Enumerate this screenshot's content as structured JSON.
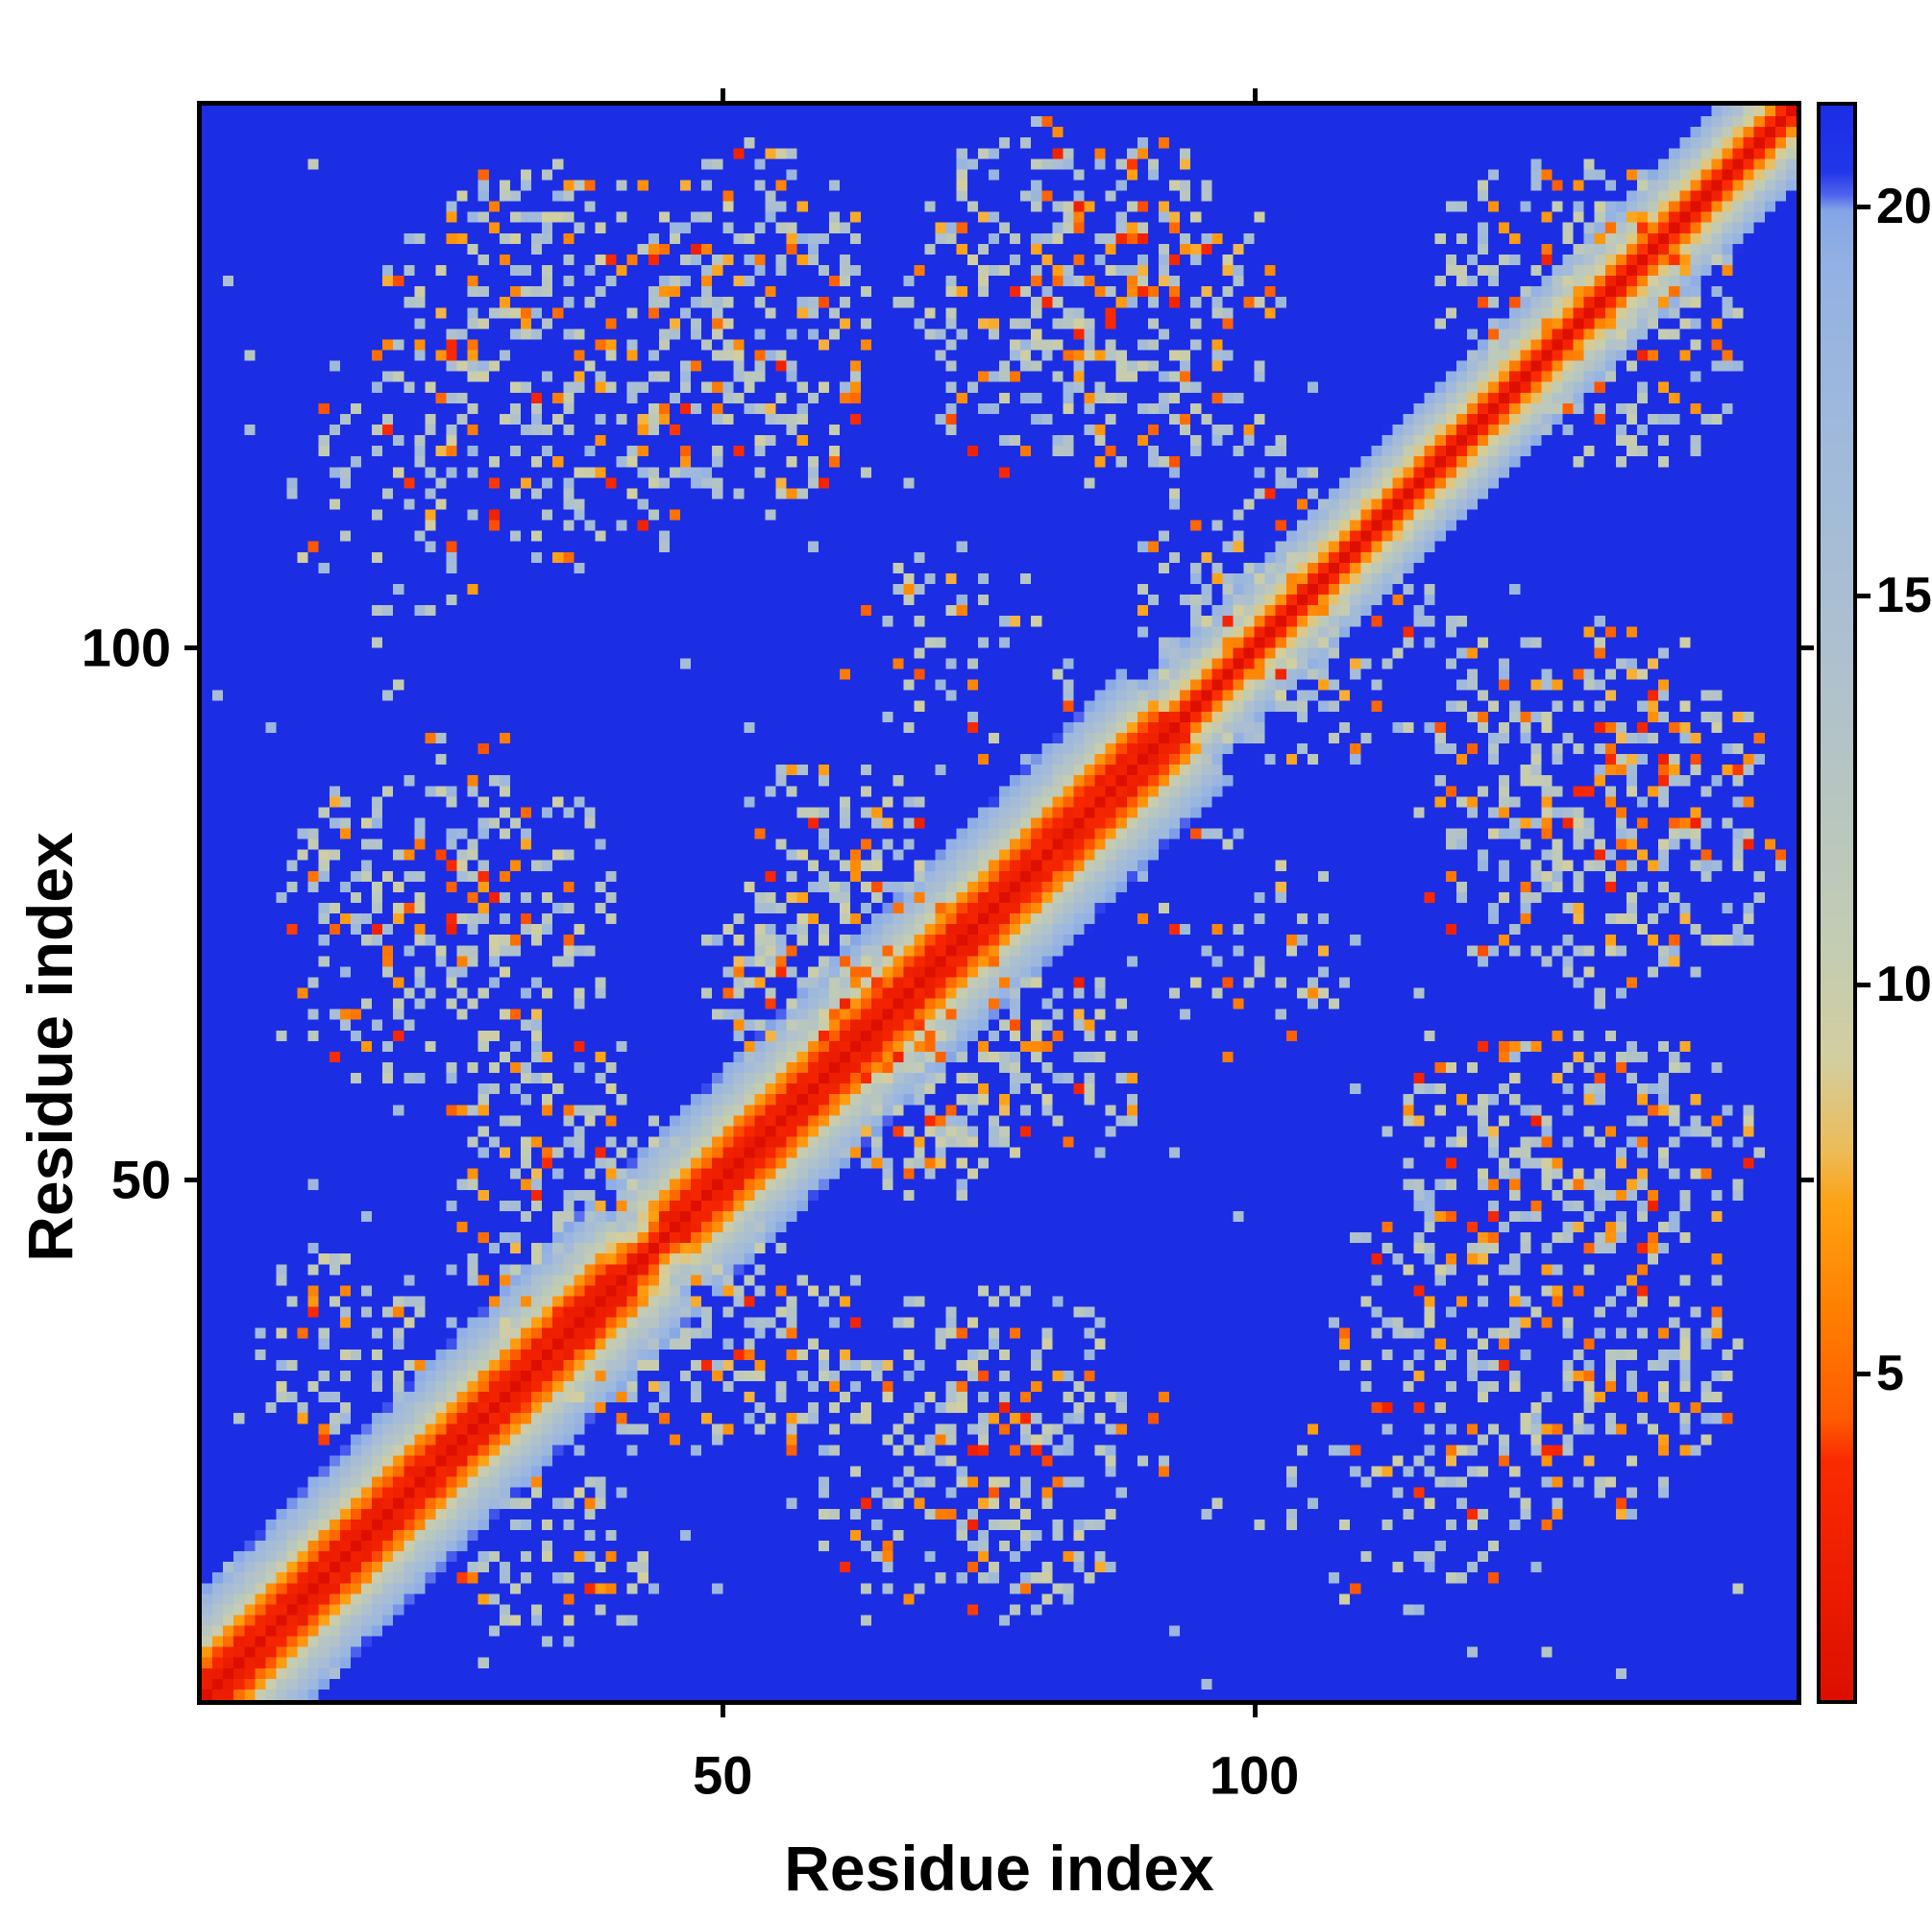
{
  "chart_data": {
    "type": "heatmap",
    "title": "",
    "xlabel": "Residue index",
    "ylabel": "Residue index",
    "x_axis": {
      "range": [
        1,
        151
      ],
      "ticks": [
        50,
        100
      ]
    },
    "y_axis": {
      "range": [
        1,
        151
      ],
      "ticks": [
        50,
        100
      ]
    },
    "n_residues": 150,
    "value_range": [
      0.8,
      21.3
    ],
    "colorbar": {
      "ticks": [
        5,
        10,
        15,
        20
      ],
      "position": "right",
      "orientation": "vertical"
    },
    "colors": {
      "background_high": "#1c2ee4",
      "diagonal_low": "#dd0f00",
      "mid_contact": "#c4ccb2",
      "orange_contact": "#ff7e00",
      "frame": "#000000"
    },
    "colormap": [
      [
        0.0,
        "#dd0f00"
      ],
      [
        0.15,
        "#fb2b00"
      ],
      [
        0.175,
        "#ff5a00"
      ],
      [
        0.24,
        "#ff7e00"
      ],
      [
        0.31,
        "#ffa112"
      ],
      [
        0.345,
        "#edbc59"
      ],
      [
        0.4,
        "#d3ce9e"
      ],
      [
        0.47,
        "#c4ccb2"
      ],
      [
        0.56,
        "#b8c6c0"
      ],
      [
        0.66,
        "#adc0cf"
      ],
      [
        0.8,
        "#9fb9dc"
      ],
      [
        0.9,
        "#93b1e4"
      ],
      [
        0.935,
        "#84a6e6"
      ],
      [
        0.945,
        "#4f63ee"
      ],
      [
        0.96,
        "#2136ea"
      ],
      [
        1.0,
        "#1c2ee4"
      ]
    ],
    "generator": {
      "seed": 1337,
      "band": {
        "slope_default": 2.6,
        "slope_wide": 1.9,
        "wide_segments": [
          [
            1,
            42
          ],
          [
            44,
            92
          ]
        ],
        "helix_segments": [
          [
            1,
            40
          ],
          [
            45,
            92
          ]
        ],
        "helix_offset_min": 2,
        "helix_offset_max": 4,
        "helix_boost": 1.8,
        "noise": 0.6
      },
      "patches": [
        {
          "a": [
            8,
            40
          ],
          "b": [
            55,
            92
          ],
          "density": 0.3,
          "orange": 0.16
        },
        {
          "a": [
            24,
            46
          ],
          "b": [
            30,
            64
          ],
          "density": 0.33,
          "orange": 0.18
        },
        {
          "a": [
            48,
            72
          ],
          "b": [
            54,
            90
          ],
          "density": 0.38,
          "orange": 0.18
        },
        {
          "a": [
            42,
            64
          ],
          "b": [
            112,
            148
          ],
          "density": 0.33,
          "orange": 0.16
        },
        {
          "a": [
            66,
            102
          ],
          "b": [
            114,
            150
          ],
          "density": 0.36,
          "orange": 0.2
        },
        {
          "a": [
            16,
            51
          ],
          "b": [
            106,
            146
          ],
          "density": 0.3,
          "orange": 0.18
        },
        {
          "a": [
            88,
            110
          ],
          "b": [
            92,
            122
          ],
          "density": 0.25,
          "orange": 0.12
        },
        {
          "a": [
            116,
            142
          ],
          "b": [
            120,
            148
          ],
          "density": 0.28,
          "orange": 0.16
        },
        {
          "a": [
            60,
            84
          ],
          "b": [
            86,
            110
          ],
          "density": 0.12,
          "orange": 0.1
        },
        {
          "a": [
            5,
            22
          ],
          "b": [
            24,
            44
          ],
          "density": 0.28,
          "orange": 0.16
        },
        {
          "a": [
            8,
            28
          ],
          "b": [
            95,
            130
          ],
          "density": 0.1,
          "orange": 0.1
        }
      ],
      "pale_range": [
        9,
        18.5
      ],
      "orange_range": [
        4.6,
        7.9
      ],
      "stray_density": 0.003
    }
  }
}
